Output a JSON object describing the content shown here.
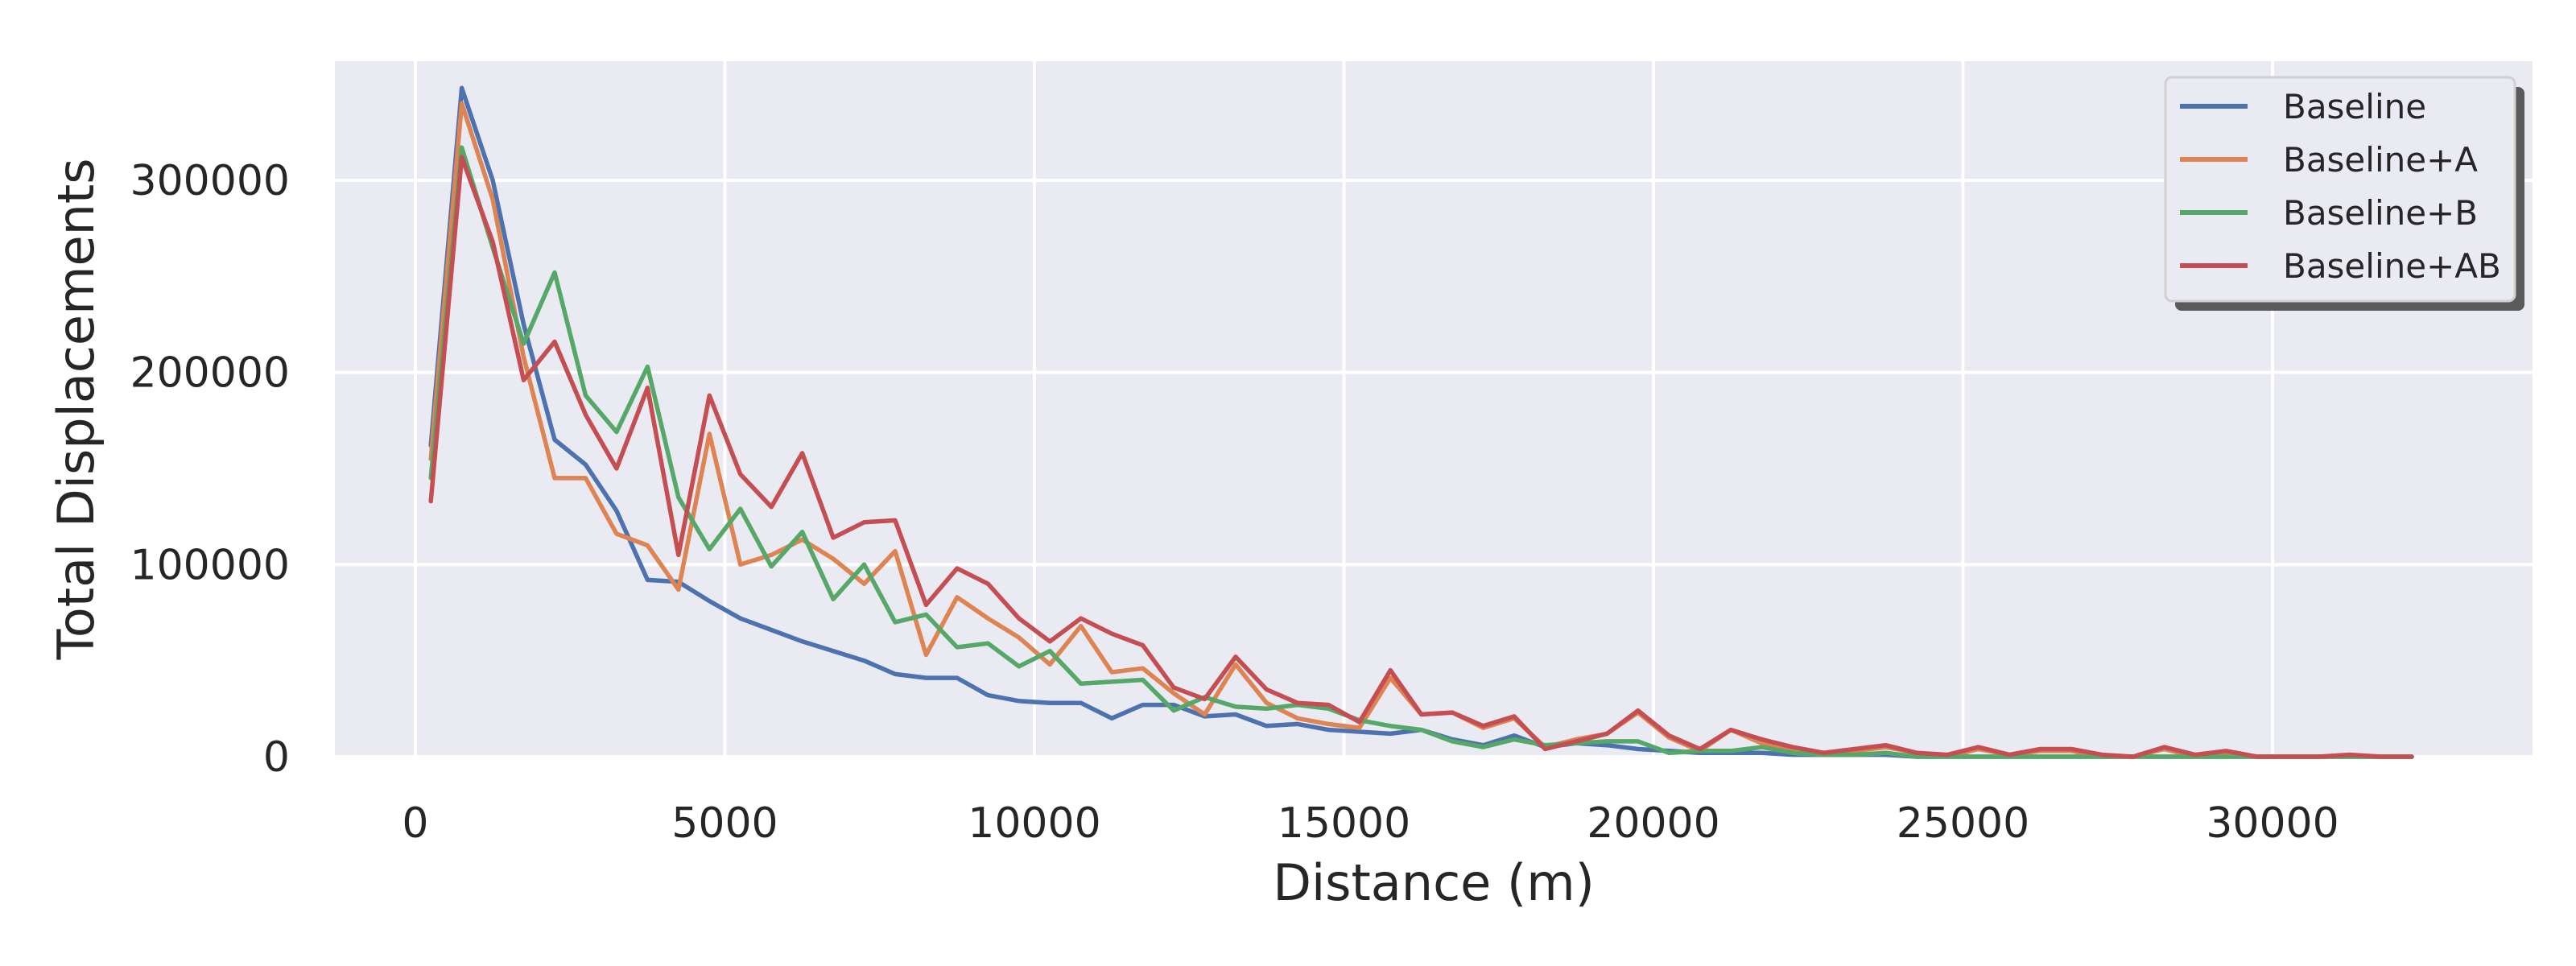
{
  "chart_data": {
    "type": "line",
    "title": "",
    "xlabel": "Distance (m)",
    "ylabel": "Total Displacements",
    "xlim": [
      -1300,
      34200
    ],
    "ylim": [
      0,
      362000
    ],
    "xticks": [
      0,
      5000,
      10000,
      15000,
      20000,
      25000,
      30000
    ],
    "yticks": [
      0,
      100000,
      200000,
      300000
    ],
    "xtick_labels": [
      "0",
      "5000",
      "10000",
      "15000",
      "20000",
      "25000",
      "30000"
    ],
    "ytick_labels": [
      "0",
      "100000",
      "200000",
      "300000"
    ],
    "grid": true,
    "legend_position": "top-right",
    "x": [
      250,
      750,
      1250,
      1750,
      2250,
      2750,
      3250,
      3750,
      4250,
      4750,
      5250,
      5750,
      6250,
      6750,
      7250,
      7750,
      8250,
      8750,
      9250,
      9750,
      10250,
      10750,
      11250,
      11750,
      12250,
      12750,
      13250,
      13750,
      14250,
      14750,
      15250,
      15750,
      16250,
      16750,
      17250,
      17750,
      18250,
      18750,
      19250,
      19750,
      20250,
      20750,
      21250,
      21750,
      22250,
      22750,
      23250,
      23750,
      24250,
      24750,
      25250,
      25750,
      26250,
      26750,
      27250,
      27750,
      28250,
      28750,
      29250,
      29750,
      30250,
      30750,
      31250,
      31750,
      32250
    ],
    "series": [
      {
        "name": "Baseline",
        "color": "#4c72b0",
        "values": [
          162000,
          348000,
          300000,
          225000,
          165000,
          152000,
          128000,
          92000,
          91000,
          81000,
          72000,
          66000,
          60000,
          55000,
          50000,
          43000,
          41000,
          41000,
          32000,
          29000,
          28000,
          28000,
          20000,
          27000,
          27000,
          21000,
          22000,
          16000,
          17000,
          14000,
          13000,
          12000,
          14000,
          9000,
          6000,
          11000,
          5000,
          7000,
          6000,
          4000,
          3000,
          2000,
          2000,
          2000,
          1000,
          1000,
          1000,
          1000,
          0,
          0,
          0,
          0,
          0,
          0,
          0,
          0,
          0,
          0,
          0,
          0,
          0,
          0,
          0,
          0,
          0
        ]
      },
      {
        "name": "Baseline+A",
        "color": "#dd8452",
        "values": [
          155000,
          340000,
          290000,
          208000,
          145000,
          145000,
          116000,
          110000,
          87000,
          168000,
          100000,
          105000,
          113000,
          103000,
          90000,
          107000,
          53000,
          83000,
          72000,
          62000,
          48000,
          68000,
          44000,
          46000,
          33000,
          22000,
          48000,
          28000,
          20000,
          17000,
          15000,
          41000,
          22000,
          23000,
          15000,
          20000,
          5000,
          9000,
          12000,
          23000,
          10000,
          3000,
          14000,
          7000,
          4000,
          2000,
          3000,
          5000,
          2000,
          0,
          4000,
          1000,
          3000,
          3000,
          0,
          0,
          4000,
          0,
          2000,
          0,
          0,
          0,
          1000,
          0,
          0
        ]
      },
      {
        "name": "Baseline+B",
        "color": "#55a868",
        "values": [
          145000,
          317000,
          265000,
          215000,
          252000,
          188000,
          169000,
          203000,
          135000,
          108000,
          129000,
          99000,
          117000,
          82000,
          100000,
          70000,
          74000,
          57000,
          59000,
          47000,
          55000,
          38000,
          39000,
          40000,
          24000,
          31000,
          26000,
          25000,
          27000,
          25000,
          19000,
          16000,
          14000,
          8000,
          5000,
          9000,
          6000,
          7000,
          8000,
          8000,
          2000,
          3000,
          3000,
          5000,
          2000,
          1000,
          1000,
          2000,
          0,
          0,
          0,
          0,
          0,
          0,
          0,
          0,
          0,
          0,
          0,
          0,
          0,
          0,
          0,
          0,
          0
        ]
      },
      {
        "name": "Baseline+AB",
        "color": "#c44e52",
        "values": [
          133000,
          312000,
          268000,
          196000,
          216000,
          178000,
          150000,
          192000,
          105000,
          188000,
          147000,
          130000,
          158000,
          114000,
          122000,
          123000,
          79000,
          98000,
          90000,
          72000,
          60000,
          72000,
          64000,
          58000,
          36000,
          30000,
          52000,
          35000,
          28000,
          27000,
          18000,
          45000,
          22000,
          23000,
          16000,
          21000,
          4000,
          8000,
          12000,
          24000,
          11000,
          4000,
          14000,
          9000,
          5000,
          2000,
          4000,
          6000,
          2000,
          1000,
          5000,
          1000,
          4000,
          4000,
          1000,
          0,
          5000,
          1000,
          3000,
          0,
          0,
          0,
          1000,
          0,
          0
        ]
      }
    ]
  }
}
